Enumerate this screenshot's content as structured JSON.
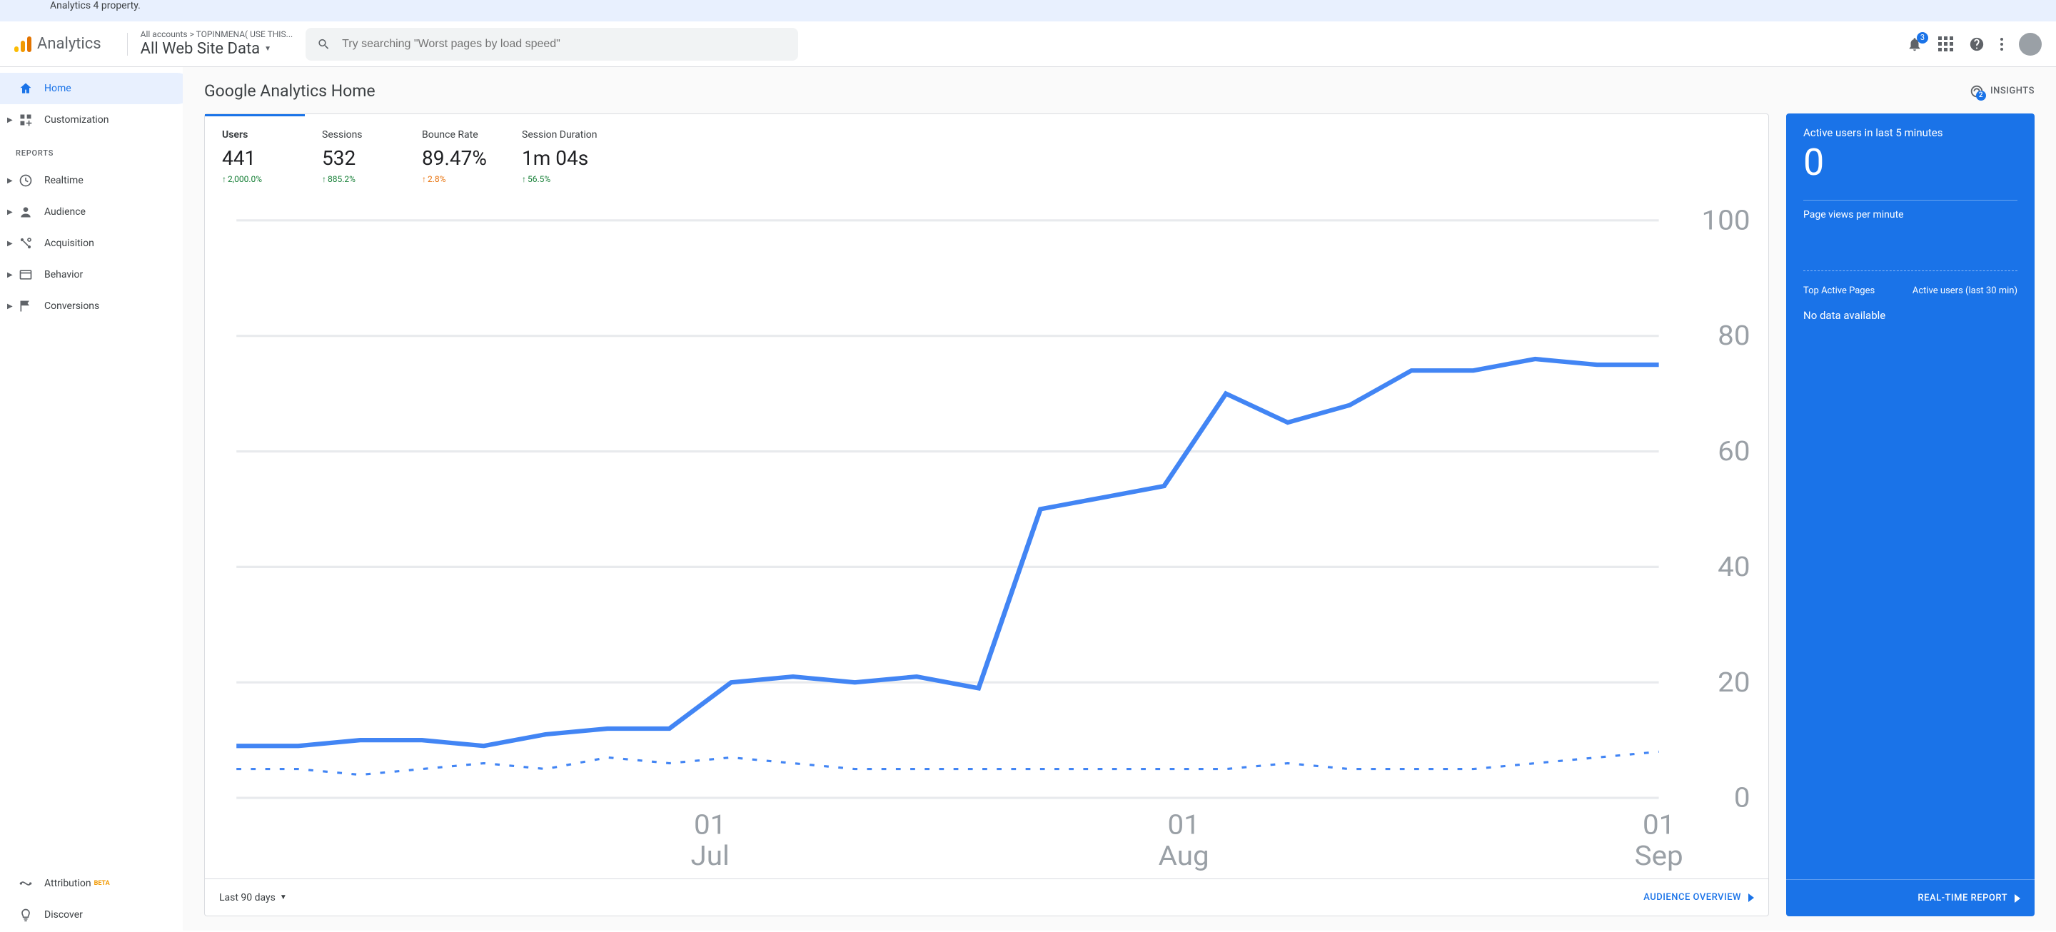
{
  "banner": {
    "text": "Analytics 4 property."
  },
  "header": {
    "brand": "Analytics",
    "breadcrumbs": "All accounts > TOPINMENA( USE THIS...",
    "view": "All Web Site Data",
    "search_placeholder": "Try searching \"Worst pages by load speed\"",
    "notif_count": "3"
  },
  "sidebar": {
    "items": [
      {
        "label": "Home",
        "icon": "home",
        "active": true,
        "caret": false
      },
      {
        "label": "Customization",
        "icon": "customize",
        "active": false,
        "caret": true
      }
    ],
    "reports_header": "REPORTS",
    "reports": [
      {
        "label": "Realtime",
        "icon": "clock",
        "caret": true
      },
      {
        "label": "Audience",
        "icon": "person",
        "caret": true
      },
      {
        "label": "Acquisition",
        "icon": "acquisition",
        "caret": true
      },
      {
        "label": "Behavior",
        "icon": "behavior",
        "caret": true
      },
      {
        "label": "Conversions",
        "icon": "flag",
        "caret": true
      }
    ],
    "bottom": [
      {
        "label": "Attribution",
        "icon": "attribution",
        "badge": "BETA"
      },
      {
        "label": "Discover",
        "icon": "discover"
      }
    ]
  },
  "page": {
    "title": "Google Analytics Home",
    "insights_label": "INSIGHTS",
    "insights_badge": "2"
  },
  "audience": {
    "metrics": [
      {
        "label": "Users",
        "value": "441",
        "delta": "2,000.0%",
        "active": true,
        "delta_kind": "up"
      },
      {
        "label": "Sessions",
        "value": "532",
        "delta": "885.2%",
        "active": false,
        "delta_kind": "up"
      },
      {
        "label": "Bounce Rate",
        "value": "89.47%",
        "delta": "2.8%",
        "active": false,
        "delta_kind": "warn"
      },
      {
        "label": "Session Duration",
        "value": "1m 04s",
        "delta": "56.5%",
        "active": false,
        "delta_kind": "up"
      }
    ],
    "chart": {
      "type": "line",
      "ylim": [
        0,
        100
      ],
      "ytick_step": 20,
      "y_ticks": [
        "0",
        "20",
        "40",
        "60",
        "80",
        "100"
      ],
      "grid_color": "#e8eaed",
      "axis_label_color": "#9aa0a6",
      "x_ticks": [
        {
          "pos": 0.333,
          "line1": "01",
          "line2": "Jul"
        },
        {
          "pos": 0.666,
          "line1": "01",
          "line2": "Aug"
        },
        {
          "pos": 1.0,
          "line1": "01",
          "line2": "Sep"
        }
      ],
      "line_color": "#4285f4",
      "line_width": 2,
      "dash_color": "#4285f4",
      "series_main": [
        9,
        9,
        10,
        10,
        9,
        11,
        12,
        12,
        20,
        21,
        20,
        21,
        19,
        50,
        52,
        54,
        70,
        65,
        68,
        74,
        74,
        76,
        75,
        75
      ],
      "series_dash": [
        5,
        5,
        4,
        5,
        6,
        5,
        7,
        6,
        7,
        6,
        5,
        5,
        5,
        5,
        5,
        5,
        5,
        6,
        5,
        5,
        5,
        6,
        7,
        8
      ]
    },
    "period_label": "Last 90 days",
    "footer_link": "AUDIENCE OVERVIEW"
  },
  "realtime": {
    "title": "Active users in last 5 minutes",
    "big": "0",
    "pageviews_label": "Page views per minute",
    "col_left": "Top Active Pages",
    "col_right": "Active users (last 30 min)",
    "no_data": "No data available",
    "footer_link": "REAL-TIME REPORT",
    "bg_color": "#1a73e8"
  }
}
